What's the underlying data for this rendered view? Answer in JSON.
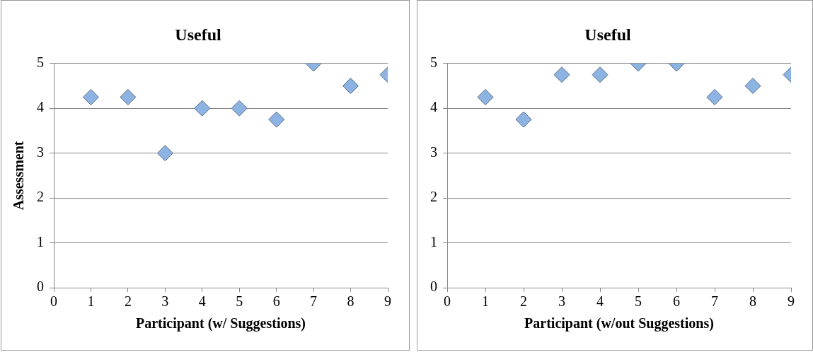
{
  "chart_data": [
    {
      "type": "scatter",
      "title": "Useful",
      "xlabel": "Participant (w/ Suggestions)",
      "ylabel": "Assessment",
      "x": [
        1,
        2,
        3,
        4,
        5,
        6,
        7,
        8,
        9
      ],
      "series": [
        {
          "color": "#8db3e2",
          "values": [
            4.25,
            4.25,
            3,
            4,
            4,
            3.75,
            5,
            4.5,
            4.75
          ]
        }
      ],
      "xlim": [
        0,
        9
      ],
      "xticks": [
        0,
        1,
        2,
        3,
        4,
        5,
        6,
        7,
        8,
        9
      ],
      "ylim": [
        0,
        5
      ],
      "yticks": [
        0,
        1,
        2,
        3,
        4,
        5
      ],
      "grid": "y",
      "marker": "diamond",
      "legend": false
    },
    {
      "type": "scatter",
      "title": "Useful",
      "xlabel": "Participant (w/out Suggestions)",
      "x": [
        1,
        2,
        3,
        4,
        5,
        6,
        7,
        8,
        9
      ],
      "series": [
        {
          "color": "#8db3e2",
          "values": [
            4.25,
            3.75,
            4.75,
            4.75,
            5,
            5,
            4.25,
            4.5,
            4.75
          ]
        }
      ],
      "xlim": [
        0,
        9
      ],
      "xticks": [
        0,
        1,
        2,
        3,
        4,
        5,
        6,
        7,
        8,
        9
      ],
      "ylim": [
        0,
        5
      ],
      "yticks": [
        0,
        1,
        2,
        3,
        4,
        5
      ],
      "grid": "y",
      "marker": "diamond",
      "legend": false
    }
  ]
}
